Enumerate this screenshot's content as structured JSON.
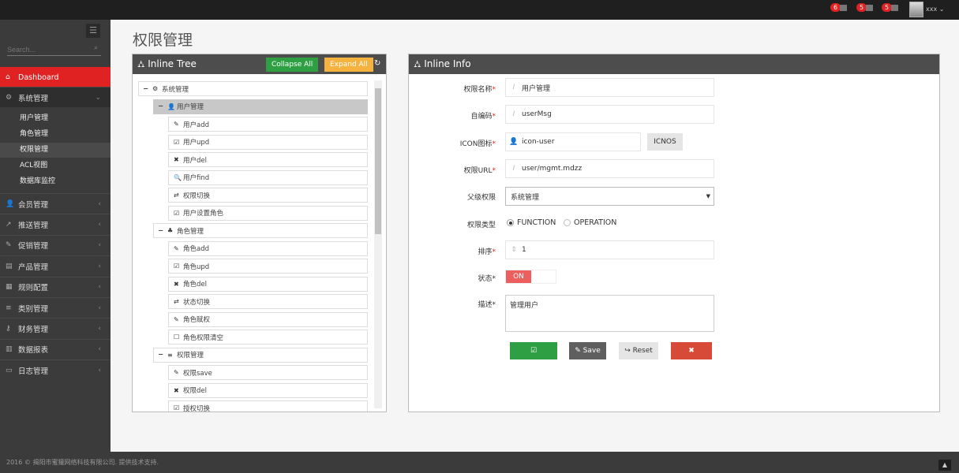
{
  "topbar": {
    "notifications": [
      {
        "count": "6",
        "icon": "bell-icon"
      },
      {
        "count": "5",
        "icon": "envelope-icon"
      },
      {
        "count": "5",
        "icon": "tasks-icon"
      }
    ],
    "user": "xxx"
  },
  "sidebar": {
    "search_placeholder": "Search...",
    "dashboard": "Dashboard",
    "system": "系统管理",
    "sub_items": [
      "用户管理",
      "角色管理",
      "权限管理",
      "ACL视图",
      "数据库监控"
    ],
    "items": [
      {
        "label": "会员管理",
        "icon": "user-icon"
      },
      {
        "label": "推送管理",
        "icon": "share-icon"
      },
      {
        "label": "促销管理",
        "icon": "pencil-icon"
      },
      {
        "label": "产品管理",
        "icon": "book-icon"
      },
      {
        "label": "规则配置",
        "icon": "table-icon"
      },
      {
        "label": "类别管理",
        "icon": "list-icon"
      },
      {
        "label": "财务管理",
        "icon": "key-icon"
      },
      {
        "label": "数据报表",
        "icon": "chart-icon"
      },
      {
        "label": "日志管理",
        "icon": "credit-card-icon"
      }
    ]
  },
  "page_title": "权限管理",
  "tree_panel": {
    "title": "Inline Tree",
    "collapse": "Collapse All",
    "expand": "Expand All",
    "nodes": [
      {
        "label": "系统管理",
        "level": 0,
        "toggle": "−",
        "icon": "⚙"
      },
      {
        "label": "用户管理",
        "level": 1,
        "toggle": "−",
        "icon": "👤",
        "selected": true
      },
      {
        "label": "用户add",
        "level": 2,
        "icon": "✎"
      },
      {
        "label": "用户upd",
        "level": 2,
        "icon": "☑"
      },
      {
        "label": "用户del",
        "level": 2,
        "icon": "✖"
      },
      {
        "label": "用户find",
        "level": 2,
        "icon": "🔍"
      },
      {
        "label": "权限切换",
        "level": 2,
        "icon": "⇄"
      },
      {
        "label": "用户设置角色",
        "level": 2,
        "icon": "☑"
      },
      {
        "label": "角色管理",
        "level": 1,
        "toggle": "−",
        "icon": "♣"
      },
      {
        "label": "角色add",
        "level": 2,
        "icon": "✎"
      },
      {
        "label": "角色upd",
        "level": 2,
        "icon": "☑"
      },
      {
        "label": "角色del",
        "level": 2,
        "icon": "✖"
      },
      {
        "label": "状态切换",
        "level": 2,
        "icon": "⇄"
      },
      {
        "label": "角色赋权",
        "level": 2,
        "icon": "✎"
      },
      {
        "label": "角色权限清空",
        "level": 2,
        "icon": "☐"
      },
      {
        "label": "权限管理",
        "level": 1,
        "toggle": "−",
        "icon": "≡"
      },
      {
        "label": "权限save",
        "level": 2,
        "icon": "✎"
      },
      {
        "label": "权限del",
        "level": 2,
        "icon": "✖"
      },
      {
        "label": "授权切换",
        "level": 2,
        "icon": "☑"
      }
    ]
  },
  "info_panel": {
    "title": "Inline Info",
    "name_label": "权限名称",
    "name_value": "用户管理",
    "code_label": "自编码",
    "code_value": "userMsg",
    "icon_label": "ICON图标",
    "icon_value": "icon-user",
    "icon_button": "ICNOS",
    "url_label": "权限URL",
    "url_value": "user/mgmt.mdzz",
    "parent_label": "父级权限",
    "parent_value": "系统管理",
    "type_label": "权限类型",
    "type_options": [
      "FUNCTION",
      "OPERATION"
    ],
    "type_selected": "FUNCTION",
    "order_label": "排序",
    "order_value": "1",
    "status_label": "状态",
    "status_value": "ON",
    "desc_label": "描述",
    "desc_value": "管理用户",
    "buttons": {
      "validate": "Validate",
      "save": "Save",
      "reset": "Reset",
      "delete": "delete"
    },
    "colors": {
      "validate": "#2ea043",
      "save": "#5f5f5f",
      "reset": "#e5e5e5",
      "delete": "#d84a38",
      "on": "#ec5f5f"
    }
  },
  "footer": {
    "text": "2016 © 揭阳市蜜獾网络科技有限公司. 提供技术支持."
  }
}
